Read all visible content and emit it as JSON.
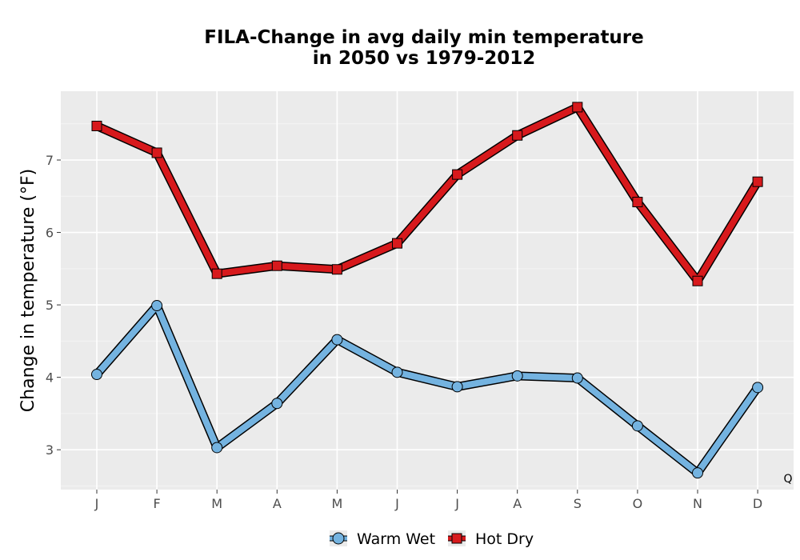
{
  "chart_data": {
    "type": "line",
    "title": "FILA-Change in avg daily min temperature",
    "subtitle": "in 2050 vs 1979-2012",
    "xlabel": "",
    "ylabel": "Change in temperature (°F)",
    "categories": [
      "J",
      "F",
      "M",
      "A",
      "M",
      "J",
      "J",
      "A",
      "S",
      "O",
      "N",
      "D"
    ],
    "ylim": [
      2.45,
      7.95
    ],
    "yticks": [
      3,
      4,
      5,
      6,
      7
    ],
    "grid": true,
    "legend_position": "bottom",
    "corner_label": "Q",
    "series": [
      {
        "name": "Warm Wet",
        "marker": "circle",
        "color": "#74b3e0",
        "values": [
          4.04,
          4.99,
          3.03,
          3.64,
          4.52,
          4.07,
          3.87,
          4.02,
          3.99,
          3.33,
          2.68,
          3.86
        ]
      },
      {
        "name": "Hot Dry",
        "marker": "square",
        "color": "#d7191c",
        "values": [
          7.47,
          7.1,
          5.43,
          5.54,
          5.49,
          5.85,
          6.8,
          7.34,
          7.73,
          6.42,
          5.33,
          6.7
        ]
      }
    ]
  }
}
